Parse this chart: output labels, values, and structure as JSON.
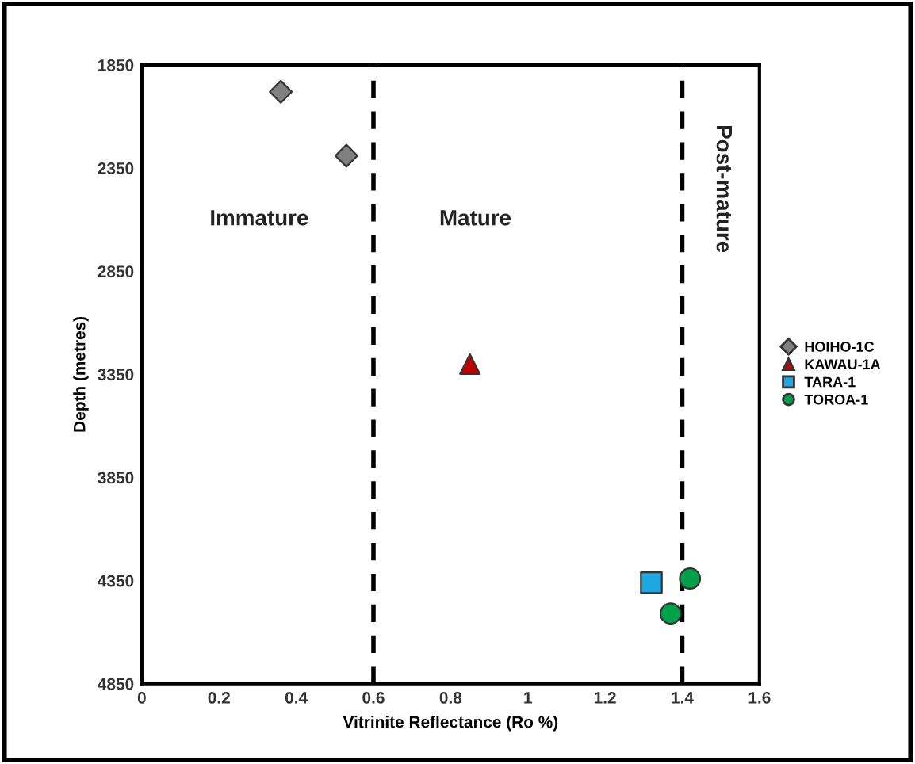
{
  "chart_data": {
    "type": "scatter",
    "xlabel": "Vitrinite Reflectance (Ro %)",
    "ylabel": "Depth (metres)",
    "xlim": [
      0,
      1.6
    ],
    "xticks": [
      0,
      0.2,
      0.4,
      0.6,
      0.8,
      1,
      1.2,
      1.4,
      1.6
    ],
    "ylim": [
      4850,
      1850
    ],
    "yticks": [
      1850,
      2350,
      2850,
      3350,
      3850,
      4350,
      4850
    ],
    "series": [
      {
        "name": "HOIHO-1C",
        "color": "#808080",
        "marker": "diamond",
        "x": [
          0.36,
          0.53
        ],
        "values": [
          1980,
          2290
        ]
      },
      {
        "name": "KAWAU-1A",
        "color": "#c00000",
        "marker": "triangle",
        "x": [
          0.85
        ],
        "values": [
          3300
        ]
      },
      {
        "name": "TARA-1",
        "color": "#1fa7e1",
        "marker": "square",
        "x": [
          1.32
        ],
        "values": [
          4360
        ]
      },
      {
        "name": "TOROA-1",
        "color": "#00a04b",
        "marker": "circle",
        "x": [
          1.42,
          1.37
        ],
        "values": [
          4340,
          4510
        ]
      }
    ],
    "ref_lines": [
      {
        "axis": "x",
        "value": 0.6,
        "label": null,
        "color": "#000000",
        "line_style": "dashed"
      },
      {
        "axis": "x",
        "value": 1.4,
        "label": null,
        "color": "#000000",
        "line_style": "dashed"
      }
    ],
    "annotations": [
      "Immature",
      "Mature",
      "Post-mature"
    ],
    "legend": "right",
    "grid": false
  }
}
